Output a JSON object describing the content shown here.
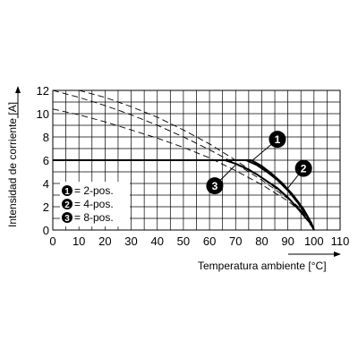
{
  "chart_data": {
    "type": "line",
    "xlabel": "Temperatura ambiente [°C]",
    "ylabel": "Intensidad de corriente [A]",
    "xlim": [
      0,
      110
    ],
    "ylim": [
      0,
      12
    ],
    "x_ticks": [
      "0",
      "10",
      "20",
      "30",
      "40",
      "50",
      "60",
      "70",
      "80",
      "90",
      "100",
      "110"
    ],
    "y_ticks": [
      "0",
      "2",
      "4",
      "6",
      "8",
      "10",
      "12"
    ],
    "grid": true,
    "legend": {
      "placement": "bottom-left",
      "items": [
        {
          "marker": "1",
          "label": "= 2-pos."
        },
        {
          "marker": "2",
          "label": "= 4-pos."
        },
        {
          "marker": "3",
          "label": "= 8-pos."
        }
      ]
    },
    "series": [
      {
        "name": "2-pos.",
        "marker": "1",
        "style": "solid",
        "x": [
          0,
          72,
          76,
          80,
          84,
          88,
          92,
          96,
          98,
          100
        ],
        "y": [
          6,
          6,
          6,
          5.5,
          4.8,
          4.0,
          3.0,
          1.8,
          1.0,
          0
        ]
      },
      {
        "name": "4-pos.",
        "marker": "2",
        "style": "solid",
        "x": [
          74,
          78,
          82,
          86,
          90,
          94,
          97,
          99,
          100
        ],
        "y": [
          6,
          5.6,
          5.0,
          4.3,
          3.4,
          2.3,
          1.3,
          0.6,
          0
        ]
      },
      {
        "name": "8-pos.",
        "marker": "3",
        "style": "solid",
        "x": [
          66,
          70,
          74,
          78,
          82,
          86,
          90,
          94,
          97,
          99,
          100
        ],
        "y": [
          6,
          5.7,
          5.3,
          4.8,
          4.2,
          3.6,
          2.8,
          1.8,
          1.0,
          0.5,
          0
        ]
      },
      {
        "name": "",
        "style": "dashed",
        "x": [
          0,
          10,
          20,
          30,
          40,
          50,
          60,
          70,
          80,
          90,
          95,
          100
        ],
        "y": [
          12,
          11.4,
          10.7,
          9.9,
          9.0,
          8.0,
          6.9,
          5.7,
          4.3,
          2.7,
          1.7,
          0
        ]
      },
      {
        "name": "",
        "style": "dashed",
        "x": [
          10,
          20,
          30,
          40,
          50,
          60,
          70,
          80,
          90,
          95,
          100
        ],
        "y": [
          12,
          11.4,
          10.6,
          9.7,
          8.6,
          7.4,
          6.0,
          4.5,
          2.8,
          1.8,
          0
        ]
      },
      {
        "name": "",
        "style": "dashed",
        "x": [
          0,
          10,
          20,
          30,
          40,
          50,
          60,
          70,
          80,
          90,
          95,
          100
        ],
        "y": [
          10.4,
          9.9,
          9.3,
          8.6,
          7.9,
          7.1,
          6.2,
          5.1,
          3.9,
          2.5,
          1.6,
          0
        ]
      }
    ],
    "callouts": [
      {
        "marker": "1",
        "x": 86,
        "y": 7.8,
        "points_to": [
          76,
          5.9
        ]
      },
      {
        "marker": "2",
        "x": 96,
        "y": 5.3,
        "points_to": [
          90,
          3.6
        ]
      },
      {
        "marker": "3",
        "x": 62,
        "y": 3.8,
        "points_to": [
          70,
          5.6
        ]
      }
    ]
  }
}
